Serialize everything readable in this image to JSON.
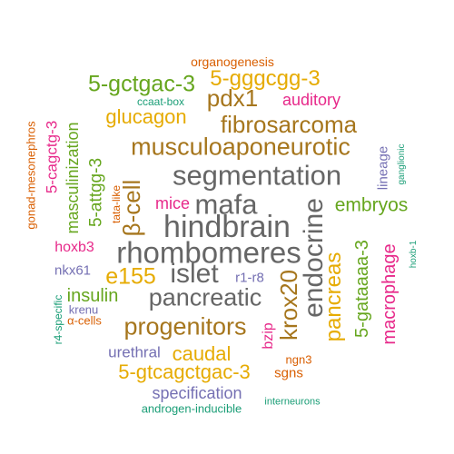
{
  "words": [
    {
      "text": "organogenesis",
      "color": "#d95f02"
    },
    {
      "text": "5-gggcgg-3",
      "color": "#e6ab02"
    },
    {
      "text": "5-gctgac-3",
      "color": "#66a61e"
    },
    {
      "text": "pdx1",
      "color": "#a6761d"
    },
    {
      "text": "auditory",
      "color": "#e7298a"
    },
    {
      "text": "ccaat-box",
      "color": "#1b9e77"
    },
    {
      "text": "glucagon",
      "color": "#e6ab02"
    },
    {
      "text": "fibrosarcoma",
      "color": "#a6761d"
    },
    {
      "text": "gonad-mesonephros",
      "color": "#d95f02"
    },
    {
      "text": "5-cagctg-3",
      "color": "#e7298a"
    },
    {
      "text": "masculinization",
      "color": "#66a61e"
    },
    {
      "text": "musculoaponeurotic",
      "color": "#a6761d"
    },
    {
      "text": "lineage",
      "color": "#7570b3"
    },
    {
      "text": "ganglionic",
      "color": "#1b9e77"
    },
    {
      "text": "5-attgg-3",
      "color": "#66a61e"
    },
    {
      "text": "segmentation",
      "color": "#666666"
    },
    {
      "text": "tata-like",
      "color": "#d95f02"
    },
    {
      "text": "β-cell",
      "color": "#a6761d"
    },
    {
      "text": "mice",
      "color": "#e7298a"
    },
    {
      "text": "mafa",
      "color": "#666666"
    },
    {
      "text": "endocrine",
      "color": "#666666"
    },
    {
      "text": "embryos",
      "color": "#66a61e"
    },
    {
      "text": "hindbrain",
      "color": "#666666"
    },
    {
      "text": "hoxb3",
      "color": "#e7298a"
    },
    {
      "text": "5-gataaaa-3",
      "color": "#66a61e"
    },
    {
      "text": "rhombomeres",
      "color": "#666666"
    },
    {
      "text": "macrophage",
      "color": "#e7298a"
    },
    {
      "text": "hoxb-1",
      "color": "#1b9e77"
    },
    {
      "text": "nkx61",
      "color": "#7570b3"
    },
    {
      "text": "e155",
      "color": "#e6ab02"
    },
    {
      "text": "islet",
      "color": "#666666"
    },
    {
      "text": "r1-r8",
      "color": "#7570b3"
    },
    {
      "text": "krox20",
      "color": "#a6761d"
    },
    {
      "text": "pancreas",
      "color": "#e6ab02"
    },
    {
      "text": "insulin",
      "color": "#66a61e"
    },
    {
      "text": "pancreatic",
      "color": "#666666"
    },
    {
      "text": "r4-specific",
      "color": "#1b9e77"
    },
    {
      "text": "krenu",
      "color": "#7570b3"
    },
    {
      "text": "α-cells",
      "color": "#d95f02"
    },
    {
      "text": "progenitors",
      "color": "#a6761d"
    },
    {
      "text": "bzip",
      "color": "#e7298a"
    },
    {
      "text": "urethral",
      "color": "#7570b3"
    },
    {
      "text": "caudal",
      "color": "#e6ab02"
    },
    {
      "text": "ngn3",
      "color": "#d95f02"
    },
    {
      "text": "5-gtcagctgac-3",
      "color": "#e6ab02"
    },
    {
      "text": "sgns",
      "color": "#d95f02"
    },
    {
      "text": "specification",
      "color": "#7570b3"
    },
    {
      "text": "interneurons",
      "color": "#1b9e77"
    },
    {
      "text": "androgen-inducible",
      "color": "#1b9e77"
    }
  ]
}
